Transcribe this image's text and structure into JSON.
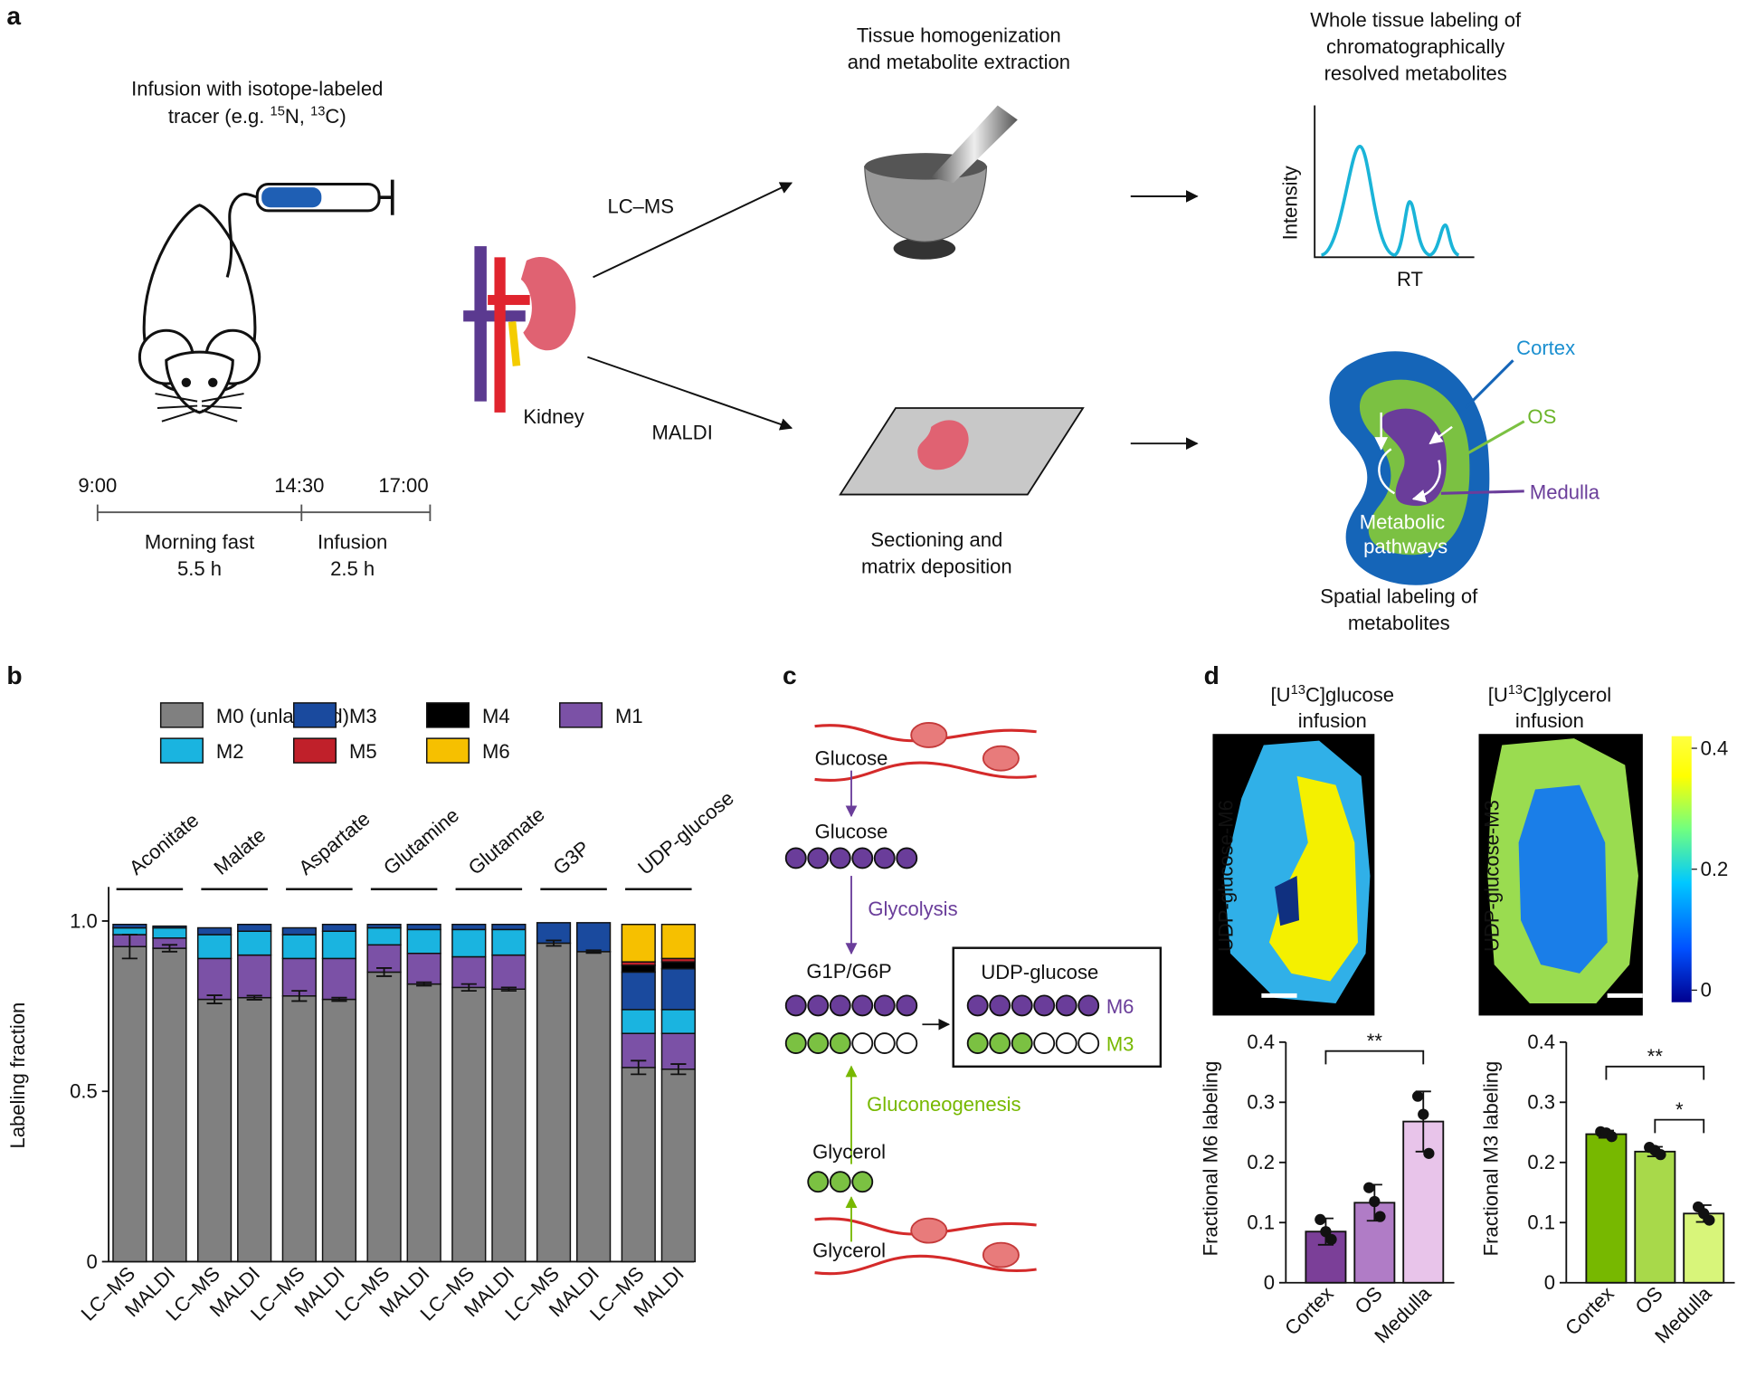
{
  "panel_labels": [
    "a",
    "b",
    "c",
    "d"
  ],
  "panel_a": {
    "infusion_title": [
      "Infusion with isotope-labeled",
      "tracer (e.g. ",
      "15",
      "N, ",
      "13",
      "C)"
    ],
    "timeline": {
      "times": [
        "9:00",
        "14:30",
        "17:00"
      ],
      "phases": [
        [
          "Morning fast",
          "5.5 h"
        ],
        [
          "Infusion",
          "2.5 h"
        ]
      ]
    },
    "kidney": "Kidney",
    "lcms": "LC–MS",
    "maldi": "MALDI",
    "homogenization": [
      "Tissue homogenization",
      "and metabolite extraction"
    ],
    "sectioning": [
      "Sectioning and",
      "matrix deposition"
    ],
    "whole_tissue": [
      "Whole tissue labeling of",
      "chromatographically",
      "resolved metabolites"
    ],
    "intensity": "Intensity",
    "rt": "RT",
    "cortex": "Cortex",
    "os": "OS",
    "medulla": "Medulla",
    "metabolic": [
      "Metabolic",
      "pathways"
    ],
    "spatial": [
      "Spatial labeling of",
      "metabolites"
    ]
  },
  "panel_c": {
    "glucose_top": "Glucose",
    "glucose": "Glucose",
    "glycolysis": "Glycolysis",
    "g1p": "G1P/G6P",
    "udp": "UDP-glucose",
    "m6": "M6",
    "m3": "M3",
    "gluconeogenesis": "Gluconeogenesis",
    "glycerol": "Glycerol",
    "glycerol_bottom": "Glycerol"
  },
  "panel_d_images": {
    "titles": [
      [
        "[U",
        "13",
        "C]glucose",
        "infusion"
      ],
      [
        "[U",
        "13",
        "C]glycerol",
        "infusion"
      ]
    ],
    "ylabels": [
      "UDP-glucose-M6",
      "UDP-glucose-M3"
    ],
    "colorbar": {
      "lim": [
        -0.02,
        0.42
      ],
      "ticks": [
        0,
        0.2,
        0.4
      ]
    }
  },
  "chart_data": [
    {
      "type": "stacked_bar",
      "ylabel": "Labeling fraction",
      "ylim": [
        0,
        1.1
      ],
      "yticks": [
        0,
        0.5,
        {
          "value": 1,
          "label": "1.0"
        }
      ],
      "groups": [
        "Aconitate",
        "Malate",
        "Aspartate",
        "Glutamine",
        "Glutamate",
        "G3P",
        "UDP-glucose"
      ],
      "categories": [
        "LC–MS",
        "MALDI",
        "LC–MS",
        "MALDI",
        "LC–MS",
        "MALDI",
        "LC–MS",
        "MALDI",
        "LC–MS",
        "MALDI",
        "LC–MS",
        "MALDI",
        "LC–MS",
        "MALDI"
      ],
      "series": [
        {
          "name": "M0 (unlabeled)",
          "color": "#808080",
          "values": [
            0.925,
            0.92,
            0.77,
            0.775,
            0.78,
            0.77,
            0.85,
            0.815,
            0.805,
            0.8,
            0.935,
            0.91,
            0.57,
            0.565
          ],
          "errors": [
            0.035,
            0.01,
            0.012,
            0.006,
            0.015,
            0.005,
            0.012,
            0.005,
            0.01,
            0.005,
            0.008,
            0.004,
            0.02,
            0.015
          ]
        },
        {
          "name": "M1",
          "color": "#7b51a6",
          "values": [
            0.035,
            0.03,
            0.12,
            0.125,
            0.11,
            0.12,
            0.08,
            0.09,
            0.09,
            0.1,
            0,
            0,
            0.1,
            0.105
          ]
        },
        {
          "name": "M2",
          "color": "#1ab4e0",
          "values": [
            0.02,
            0.03,
            0.07,
            0.07,
            0.07,
            0.08,
            0.05,
            0.07,
            0.08,
            0.075,
            0,
            0,
            0.07,
            0.07
          ]
        },
        {
          "name": "M3",
          "color": "#1a4a9e",
          "values": [
            0.01,
            0.005,
            0.02,
            0.02,
            0.02,
            0.02,
            0.01,
            0.015,
            0.015,
            0.015,
            0.06,
            0.085,
            0.11,
            0.12
          ]
        },
        {
          "name": "M4",
          "color": "#000000",
          "values": [
            0,
            0,
            0,
            0,
            0,
            0,
            0,
            0,
            0,
            0,
            0,
            0,
            0.02,
            0.02
          ]
        },
        {
          "name": "M5",
          "color": "#c0202a",
          "values": [
            0,
            0,
            0,
            0,
            0,
            0,
            0,
            0,
            0,
            0,
            0,
            0,
            0.01,
            0.01
          ]
        },
        {
          "name": "M6",
          "color": "#f6c000",
          "values": [
            0,
            0,
            0,
            0,
            0,
            0,
            0,
            0,
            0,
            0,
            0,
            0,
            0.11,
            0.1
          ]
        }
      ]
    },
    {
      "type": "bar",
      "ylabel": "Fractional M6 labeling",
      "ylim": [
        0,
        0.4
      ],
      "yticks": [
        0,
        0.1,
        0.2,
        0.3,
        0.4
      ],
      "categories": [
        "Cortex",
        "OS",
        "Medulla"
      ],
      "values": [
        0.085,
        0.133,
        0.268
      ],
      "errors": [
        0.022,
        0.03,
        0.05
      ],
      "colors": [
        "#7b3f98",
        "#b07cc6",
        "#e8c4ea"
      ],
      "points": [
        [
          0.105,
          0.085,
          0.072
        ],
        [
          0.158,
          0.135,
          0.11
        ],
        [
          0.31,
          0.28,
          0.215
        ]
      ],
      "brackets": [
        {
          "label": "**",
          "between": [
            0,
            2
          ]
        }
      ]
    },
    {
      "type": "bar",
      "ylabel": "Fractional M3 labeling",
      "ylim": [
        0,
        0.4
      ],
      "yticks": [
        0,
        0.1,
        0.2,
        0.3,
        0.4
      ],
      "categories": [
        "Cortex",
        "OS",
        "Medulla"
      ],
      "values": [
        0.247,
        0.218,
        0.115
      ],
      "errors": [
        0.006,
        0.008,
        0.014
      ],
      "colors": [
        "#77b800",
        "#a8d94a",
        "#d8f57a"
      ],
      "points": [
        [
          0.251,
          0.249,
          0.243
        ],
        [
          0.225,
          0.22,
          0.213
        ],
        [
          0.126,
          0.115,
          0.104
        ]
      ],
      "brackets": [
        {
          "label": "**",
          "between": [
            0,
            2
          ]
        },
        {
          "label": "*",
          "between": [
            1,
            2
          ]
        }
      ]
    }
  ]
}
